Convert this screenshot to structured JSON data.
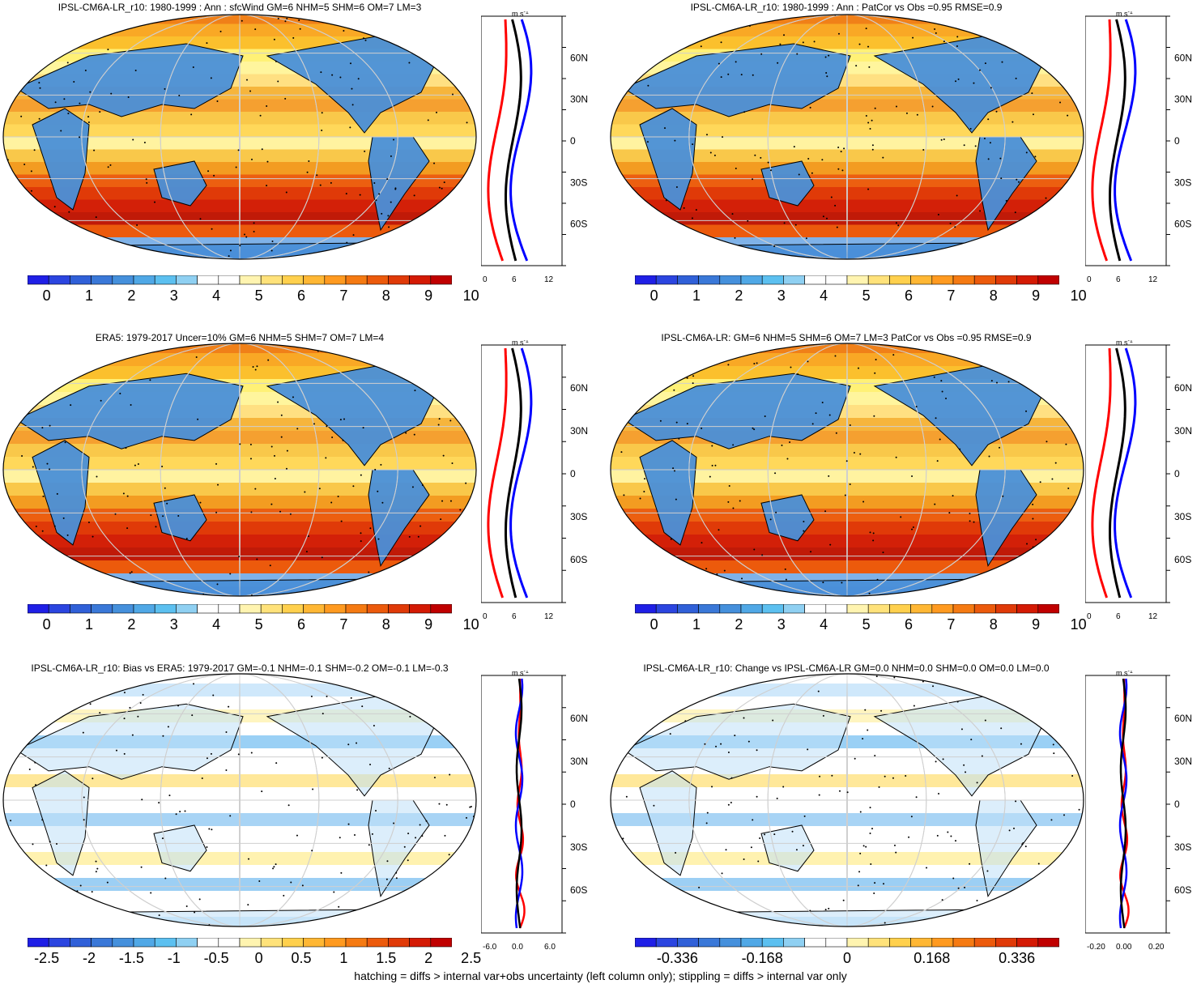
{
  "footnote": "hatching = diffs > internal var+obs uncertainty (left column only); stippling = diffs > internal var only",
  "lat_labels": [
    "60N",
    "30N",
    "0",
    "30S",
    "60S"
  ],
  "unit": "m s",
  "unit_sup": "-1",
  "colors": {
    "abs_scale": [
      "#1f1fe6",
      "#2b45e0",
      "#3060d8",
      "#3a78d8",
      "#4590dc",
      "#50a8e6",
      "#5cc0f0",
      "#8fd0f2",
      "#ffffff",
      "#ffffff",
      "#fff4b0",
      "#ffe27a",
      "#ffd04d",
      "#ffb734",
      "#ff9a20",
      "#f57a12",
      "#ec5a0c",
      "#e03a08",
      "#d41a04",
      "#c00000"
    ],
    "diff_scale": [
      "#1f1fe6",
      "#2b45e0",
      "#3060d8",
      "#3a78d8",
      "#4590dc",
      "#50a8e6",
      "#5cc0f0",
      "#8fd0f2",
      "#ffffff",
      "#ffffff",
      "#fff4b0",
      "#ffe27a",
      "#ffd04d",
      "#ffb734",
      "#ff9a20",
      "#f57a12",
      "#ec5a0c",
      "#e03a08",
      "#d41a04",
      "#c00000"
    ],
    "land_line": "#000000",
    "profile_model": "#ff0000",
    "profile_obs": "#0000ff",
    "profile_all": "#000000"
  },
  "panels": [
    {
      "title": "IPSL-CM6A-LR_r10: 1980-1999 : Ann : sfcWind GM=6 NHM=5 SHM=6 OM=7 LM=3",
      "colorbar_labels": [
        "0",
        "1",
        "2",
        "3",
        "4",
        "5",
        "6",
        "7",
        "8",
        "9",
        "10"
      ],
      "profile_ticks": [
        "0",
        "6",
        "12"
      ],
      "scale": "abs"
    },
    {
      "title": "IPSL-CM6A-LR_r10: 1980-1999 : Ann : PatCor vs Obs =0.95 RMSE=0.9",
      "colorbar_labels": [
        "0",
        "1",
        "2",
        "3",
        "4",
        "5",
        "6",
        "7",
        "8",
        "9",
        "10"
      ],
      "profile_ticks": [
        "0",
        "6",
        "12"
      ],
      "scale": "abs"
    },
    {
      "title": "ERA5: 1979-2017 Uncer=10% GM=6 NHM=5 SHM=7 OM=7 LM=4",
      "colorbar_labels": [
        "0",
        "1",
        "2",
        "3",
        "4",
        "5",
        "6",
        "7",
        "8",
        "9",
        "10"
      ],
      "profile_ticks": [
        "0",
        "6",
        "12"
      ],
      "scale": "abs"
    },
    {
      "title": "IPSL-CM6A-LR: GM=6 NHM=5 SHM=6 OM=7 LM=3 PatCor vs Obs =0.95 RMSE=0.9",
      "colorbar_labels": [
        "0",
        "1",
        "2",
        "3",
        "4",
        "5",
        "6",
        "7",
        "8",
        "9",
        "10"
      ],
      "profile_ticks": [
        "0",
        "6",
        "12"
      ],
      "scale": "abs"
    },
    {
      "title": "IPSL-CM6A-LR_r10: Bias vs ERA5: 1979-2017 GM=-0.1 NHM=-0.1 SHM=-0.2 OM=-0.1 LM=-0.3",
      "colorbar_labels": [
        "-2.5",
        "-2",
        "-1.5",
        "-1",
        "-0.5",
        "0",
        "0.5",
        "1",
        "1.5",
        "2",
        "2.5"
      ],
      "profile_ticks": [
        "-6.0",
        "0.0",
        "6.0"
      ],
      "scale": "diff"
    },
    {
      "title": "IPSL-CM6A-LR_r10: Change vs IPSL-CM6A-LR GM=0.0 NHM=0.0 SHM=0.0 OM=0.0 LM=0.0",
      "colorbar_labels": [
        "-0.336",
        "-0.168",
        "0",
        "0.168",
        "0.336"
      ],
      "profile_ticks": [
        "-0.20",
        "0.00",
        "0.20"
      ],
      "scale": "diff"
    }
  ]
}
